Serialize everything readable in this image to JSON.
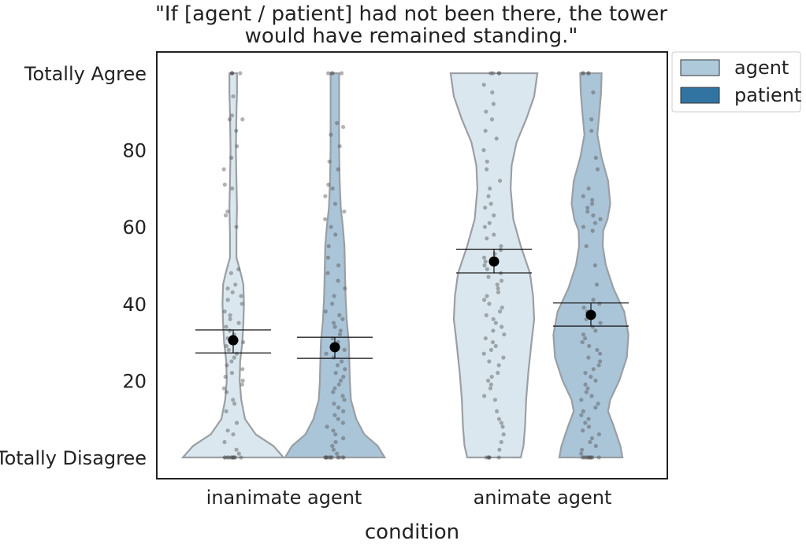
{
  "chart_data": {
    "type": "violin",
    "title": [
      "\"If [agent / patient] had not been there, the tower",
      "would have remained standing.\""
    ],
    "xlabel": "condition",
    "ylabel": "",
    "categories": [
      "inanimate agent",
      "animate agent"
    ],
    "ylim": [
      0,
      100
    ],
    "yticks": [
      {
        "value": 0,
        "label": "Totally Disagree"
      },
      {
        "value": 20,
        "label": "20"
      },
      {
        "value": 40,
        "label": "40"
      },
      {
        "value": 60,
        "label": "60"
      },
      {
        "value": 80,
        "label": "80"
      },
      {
        "value": 100,
        "label": "Totally Agree"
      }
    ],
    "grid": false,
    "legend_position": "outside-top-right",
    "series": [
      {
        "name": "agent",
        "color": "#dbe7ee",
        "legend_color": "#aec9da",
        "groups": [
          {
            "category": "inanimate agent",
            "mean": 30.5,
            "ci": [
              27.2,
              33.2
            ],
            "density": [
              [
                0,
                0.94
              ],
              [
                3,
                0.75
              ],
              [
                6,
                0.42
              ],
              [
                10,
                0.22
              ],
              [
                15,
                0.15
              ],
              [
                20,
                0.12
              ],
              [
                25,
                0.13
              ],
              [
                30,
                0.17
              ],
              [
                35,
                0.19
              ],
              [
                40,
                0.2
              ],
              [
                45,
                0.19
              ],
              [
                48,
                0.14
              ],
              [
                52,
                0.06
              ],
              [
                58,
                0.06
              ],
              [
                65,
                0.07
              ],
              [
                72,
                0.06
              ],
              [
                80,
                0.05
              ],
              [
                90,
                0.06
              ],
              [
                95,
                0.07
              ],
              [
                100,
                0.07
              ]
            ],
            "points": [
              0,
              0,
              0,
              0,
              0,
              0,
              0,
              0,
              0,
              0,
              0,
              1,
              2,
              4,
              6,
              7,
              9,
              12,
              14,
              15,
              17,
              18,
              19,
              20,
              21,
              22,
              23,
              24,
              25,
              26,
              27,
              28,
              29,
              30,
              30,
              31,
              32,
              33,
              34,
              35,
              36,
              37,
              38,
              40,
              41,
              42,
              43,
              44,
              45,
              48,
              49,
              60,
              63,
              64,
              70,
              71,
              75,
              78,
              81,
              85,
              88,
              88,
              89,
              94,
              100,
              100,
              100,
              100
            ]
          },
          {
            "category": "animate agent",
            "mean": 51.0,
            "ci": [
              48.0,
              54.2
            ],
            "density": [
              [
                0,
                0.5
              ],
              [
                3,
                0.55
              ],
              [
                8,
                0.58
              ],
              [
                15,
                0.6
              ],
              [
                22,
                0.64
              ],
              [
                30,
                0.7
              ],
              [
                36,
                0.75
              ],
              [
                42,
                0.73
              ],
              [
                48,
                0.67
              ],
              [
                55,
                0.5
              ],
              [
                62,
                0.36
              ],
              [
                70,
                0.31
              ],
              [
                76,
                0.33
              ],
              [
                82,
                0.42
              ],
              [
                88,
                0.6
              ],
              [
                94,
                0.75
              ],
              [
                100,
                0.81
              ]
            ],
            "points": [
              0,
              0,
              0,
              0,
              0,
              2,
              4,
              6,
              8,
              9,
              10,
              12,
              15,
              16,
              18,
              19,
              20,
              21,
              22,
              24,
              25,
              26,
              27,
              28,
              29,
              30,
              31,
              32,
              33,
              34,
              35,
              36,
              37,
              38,
              39,
              40,
              41,
              42,
              43,
              44,
              45,
              46,
              47,
              48,
              49,
              50,
              51,
              52,
              53,
              54,
              55,
              57,
              58,
              60,
              61,
              63,
              65,
              66,
              68,
              70,
              72,
              75,
              77,
              80,
              83,
              85,
              88,
              90,
              92,
              95,
              97,
              100,
              100,
              100,
              100
            ]
          }
        ]
      },
      {
        "name": "patient",
        "color": "#aac4d8",
        "legend_color": "#3274a1",
        "groups": [
          {
            "category": "inanimate agent",
            "mean": 28.7,
            "ci": [
              25.8,
              31.3
            ],
            "density": [
              [
                0,
                0.93
              ],
              [
                3,
                0.8
              ],
              [
                6,
                0.55
              ],
              [
                10,
                0.4
              ],
              [
                15,
                0.3
              ],
              [
                20,
                0.28
              ],
              [
                25,
                0.27
              ],
              [
                30,
                0.26
              ],
              [
                36,
                0.22
              ],
              [
                42,
                0.2
              ],
              [
                48,
                0.19
              ],
              [
                55,
                0.18
              ],
              [
                60,
                0.15
              ],
              [
                65,
                0.11
              ],
              [
                72,
                0.09
              ],
              [
                80,
                0.08
              ],
              [
                88,
                0.08
              ],
              [
                94,
                0.08
              ],
              [
                100,
                0.08
              ]
            ],
            "points": [
              0,
              0,
              0,
              0,
              0,
              0,
              0,
              0,
              0,
              0,
              0,
              0,
              1,
              2,
              3,
              4,
              5,
              6,
              7,
              8,
              9,
              10,
              11,
              12,
              13,
              14,
              15,
              16,
              17,
              18,
              19,
              20,
              21,
              22,
              23,
              24,
              25,
              26,
              27,
              28,
              29,
              30,
              31,
              32,
              33,
              34,
              35,
              36,
              37,
              38,
              40,
              42,
              44,
              46,
              48,
              50,
              52,
              55,
              58,
              60,
              62,
              64,
              66,
              68,
              70,
              71,
              75,
              77,
              81,
              84,
              86,
              87,
              100,
              100,
              100,
              100
            ]
          },
          {
            "category": "animate agent",
            "mean": 37.1,
            "ci": [
              34.2,
              40.2
            ],
            "density": [
              [
                0,
                0.59
              ],
              [
                3,
                0.55
              ],
              [
                8,
                0.43
              ],
              [
                12,
                0.32
              ],
              [
                15,
                0.36
              ],
              [
                20,
                0.53
              ],
              [
                26,
                0.67
              ],
              [
                32,
                0.7
              ],
              [
                38,
                0.62
              ],
              [
                44,
                0.42
              ],
              [
                50,
                0.28
              ],
              [
                55,
                0.22
              ],
              [
                59,
                0.23
              ],
              [
                62,
                0.31
              ],
              [
                66,
                0.36
              ],
              [
                72,
                0.32
              ],
              [
                78,
                0.2
              ],
              [
                84,
                0.12
              ],
              [
                90,
                0.16
              ],
              [
                95,
                0.19
              ],
              [
                100,
                0.2
              ]
            ],
            "points": [
              0,
              0,
              0,
              0,
              0,
              0,
              0,
              0,
              0,
              0,
              1,
              2,
              3,
              4,
              5,
              6,
              7,
              8,
              9,
              10,
              11,
              12,
              13,
              14,
              15,
              16,
              17,
              18,
              19,
              20,
              21,
              22,
              23,
              24,
              25,
              26,
              27,
              28,
              29,
              30,
              31,
              32,
              33,
              34,
              35,
              36,
              37,
              38,
              39,
              40,
              41,
              45,
              50,
              55,
              59,
              60,
              61,
              62,
              63,
              64,
              65,
              66,
              67,
              68,
              70,
              75,
              78,
              85,
              88,
              95,
              100,
              100,
              100,
              100
            ]
          }
        ]
      }
    ]
  }
}
